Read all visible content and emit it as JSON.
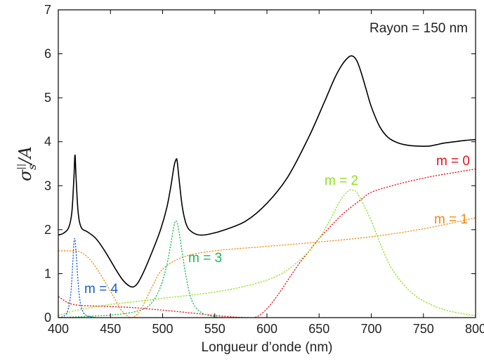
{
  "chart_data": {
    "type": "line",
    "xlabel": "Longueur d’onde (nm)",
    "ylabel": {
      "symbol": "σ",
      "superscript": "||",
      "subscript": "s",
      "denominator": "/A"
    },
    "xlim": [
      400,
      800
    ],
    "ylim": [
      0,
      7
    ],
    "xticks": [
      400,
      450,
      500,
      550,
      600,
      650,
      700,
      750,
      800
    ],
    "yticks": [
      0,
      1,
      2,
      3,
      4,
      5,
      6,
      7
    ],
    "annotation": "Rayon = 150 nm",
    "series": [
      {
        "name": "",
        "color": "#000000",
        "style": "solid",
        "x": [
          400,
          405,
          410,
          413,
          415,
          416,
          417,
          419,
          422,
          428,
          436,
          445,
          455,
          462,
          468,
          472,
          476,
          482,
          490,
          498,
          504,
          508,
          511,
          513,
          514,
          516,
          519,
          523,
          528,
          535,
          545,
          560,
          580,
          600,
          620,
          640,
          655,
          665,
          672,
          678,
          682,
          686,
          690,
          695,
          700,
          708,
          716,
          725,
          735,
          745,
          755,
          762,
          770,
          780,
          790,
          800
        ],
        "y": [
          1.88,
          1.92,
          2.05,
          2.4,
          3.2,
          3.7,
          3.2,
          2.4,
          2.05,
          1.95,
          1.8,
          1.5,
          1.1,
          0.85,
          0.72,
          0.7,
          0.78,
          1.05,
          1.5,
          2.0,
          2.5,
          3.0,
          3.45,
          3.6,
          3.55,
          3.1,
          2.5,
          2.1,
          1.95,
          1.88,
          1.9,
          2.0,
          2.2,
          2.6,
          3.2,
          4.1,
          4.9,
          5.45,
          5.75,
          5.92,
          5.95,
          5.85,
          5.6,
          5.2,
          4.8,
          4.35,
          4.1,
          3.98,
          3.92,
          3.9,
          3.9,
          3.93,
          3.97,
          4.0,
          4.03,
          4.05
        ]
      },
      {
        "name": "m = 0",
        "color": "#e8101a",
        "style": "dotted",
        "x": [
          400,
          405,
          410,
          420,
          440,
          470,
          500,
          530,
          550,
          565,
          575,
          582,
          587,
          592,
          600,
          610,
          620,
          630,
          640,
          650,
          660,
          670,
          680,
          690,
          700,
          720,
          740,
          760,
          780,
          800
        ],
        "y": [
          0.48,
          0.4,
          0.33,
          0.28,
          0.26,
          0.23,
          0.17,
          0.1,
          0.05,
          0.02,
          0.005,
          0.0,
          0.0,
          0.04,
          0.2,
          0.5,
          0.85,
          1.2,
          1.5,
          1.8,
          2.05,
          2.3,
          2.5,
          2.68,
          2.85,
          3.0,
          3.12,
          3.22,
          3.3,
          3.38
        ]
      },
      {
        "name": "m = 1",
        "color": "#f08a10",
        "style": "dotted",
        "x": [
          400,
          410,
          420,
          428,
          435,
          442,
          450,
          456,
          460,
          465,
          470,
          475,
          480,
          490,
          500,
          520,
          550,
          600,
          650,
          700,
          750,
          800
        ],
        "y": [
          1.52,
          1.52,
          1.5,
          1.38,
          1.18,
          0.92,
          0.6,
          0.35,
          0.18,
          0.06,
          0.0,
          0.06,
          0.22,
          0.7,
          1.1,
          1.38,
          1.52,
          1.62,
          1.72,
          1.84,
          2.02,
          2.27
        ]
      },
      {
        "name": "m = 2",
        "color": "#8ee01a",
        "style": "dotted",
        "x": [
          400,
          420,
          450,
          480,
          500,
          530,
          560,
          590,
          610,
          625,
          640,
          650,
          660,
          670,
          678,
          682,
          686,
          692,
          700,
          710,
          720,
          735,
          750,
          770,
          790,
          800
        ],
        "y": [
          0.05,
          0.18,
          0.3,
          0.38,
          0.44,
          0.52,
          0.62,
          0.78,
          0.95,
          1.18,
          1.5,
          1.8,
          2.2,
          2.65,
          2.88,
          2.9,
          2.85,
          2.6,
          2.2,
          1.6,
          1.1,
          0.65,
          0.38,
          0.18,
          0.08,
          0.05
        ]
      },
      {
        "name": "m = 3",
        "color": "#18b858",
        "style": "dotted",
        "x": [
          400,
          430,
          460,
          480,
          490,
          498,
          504,
          508,
          511,
          513,
          515,
          518,
          522,
          527,
          533,
          540,
          550,
          560
        ],
        "y": [
          0.0,
          0.03,
          0.08,
          0.18,
          0.35,
          0.7,
          1.2,
          1.7,
          2.1,
          2.2,
          2.05,
          1.6,
          1.0,
          0.45,
          0.2,
          0.08,
          0.02,
          0.0
        ]
      },
      {
        "name": "m = 4",
        "color": "#1a5cc8",
        "style": "dotted",
        "x": [
          400,
          405,
          409,
          412,
          414,
          415,
          416,
          417,
          419,
          421,
          424,
          428,
          435
        ],
        "y": [
          0.0,
          0.03,
          0.15,
          0.55,
          1.3,
          1.72,
          1.78,
          1.5,
          0.8,
          0.35,
          0.12,
          0.04,
          0.0
        ]
      }
    ],
    "labels": [
      {
        "text": "m = 0",
        "color": "#e8101a"
      },
      {
        "text": "m = 1",
        "color": "#f08a10"
      },
      {
        "text": "m = 2",
        "color": "#8ee01a"
      },
      {
        "text": "m = 3",
        "color": "#18b858"
      },
      {
        "text": "m = 4",
        "color": "#1a5cc8"
      }
    ]
  }
}
